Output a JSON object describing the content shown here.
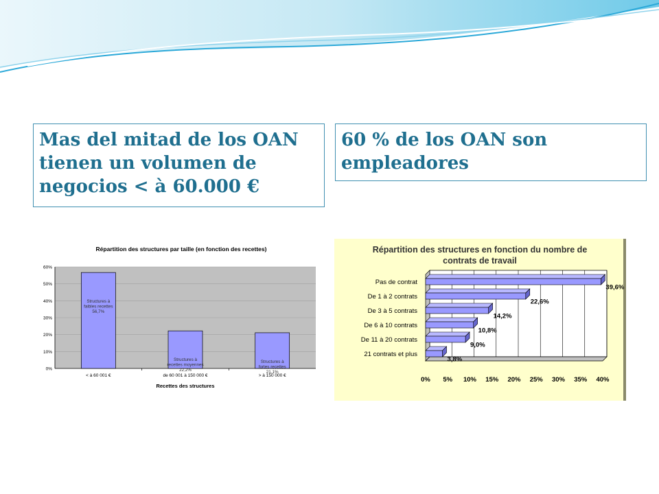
{
  "left_heading": "Mas del mitad de los OAN tienen un volumen de negocios < à 60.000 €",
  "right_heading": "60 % de los OAN son empleadores",
  "colors": {
    "bar_fill": "#9999ff",
    "plot_bg_left": "#c0c0c0",
    "chart_bg_right": "#ffffcc",
    "heading_text": "#1f6f8f",
    "heading_border": "#3f8fb0"
  },
  "chart_data": [
    {
      "type": "bar",
      "orientation": "vertical",
      "title": "Répartition des structures par taille (en fonction des recettes)",
      "xlabel": "Recettes des structures",
      "ylabel": "",
      "categories": [
        "< à 60 001 €",
        "de 60 001 à 150 000 €",
        "> à 150 000 €"
      ],
      "values": [
        56.7,
        22.2,
        21.1
      ],
      "data_labels": [
        "Structures à faibles recettes 56,7%",
        "Structures à recettes moyennes 22,2%",
        "Structures à fortes recettes 21,1%"
      ],
      "yticks": [
        "0%",
        "10%",
        "20%",
        "30%",
        "40%",
        "50%",
        "60%"
      ],
      "ylim": [
        0,
        60
      ],
      "grid": true
    },
    {
      "type": "bar",
      "orientation": "horizontal",
      "style": "3d",
      "title": "Répartition des structures en fonction du nombre de contrats de travail",
      "categories": [
        "Pas de contrat",
        "De 1 à 2 contrats",
        "De 3 à 5 contrats",
        "De 6 à 10 contrats",
        "De 11 à 20 contrats",
        "21 contrats et plus"
      ],
      "values": [
        39.6,
        22.6,
        14.2,
        10.8,
        9.0,
        3.8
      ],
      "data_labels": [
        "39,6%",
        "22,6%",
        "14,2%",
        "10,8%",
        "9,0%",
        "3,8%"
      ],
      "xticks": [
        "0%",
        "5%",
        "10%",
        "15%",
        "20%",
        "25%",
        "30%",
        "35%",
        "40%"
      ],
      "xlim": [
        0,
        40
      ],
      "grid": true
    }
  ]
}
